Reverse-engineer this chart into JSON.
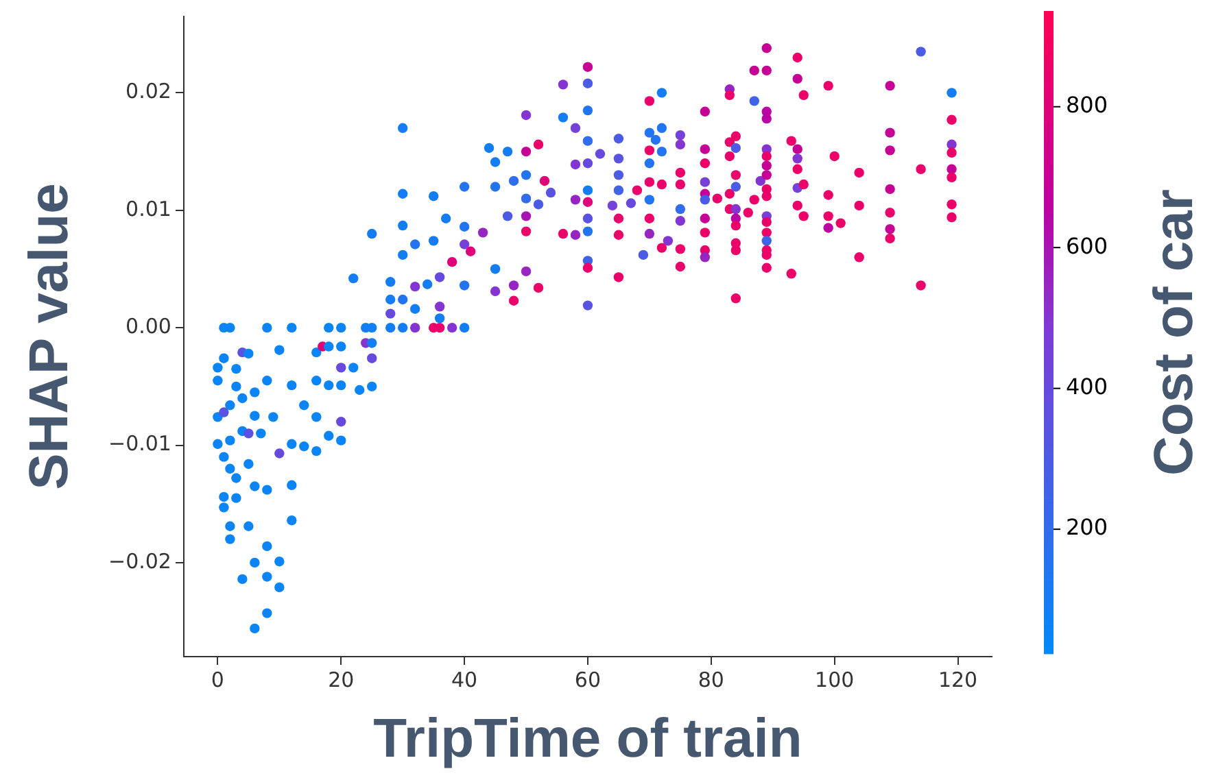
{
  "chart_data": {
    "type": "scatter",
    "xlabel": "TripTime of train",
    "ylabel": "SHAP value",
    "clabel": "Cost of car",
    "marker": "circle",
    "xlim": [
      -5.5,
      125.5
    ],
    "ylim": [
      -0.028,
      0.0265
    ],
    "xticks": [
      0,
      20,
      40,
      60,
      80,
      100,
      120
    ],
    "yticks": [
      {
        "value": -0.02,
        "label": "−0.02"
      },
      {
        "value": -0.01,
        "label": "−0.01"
      },
      {
        "value": 0,
        "label": "0.00"
      },
      {
        "value": 0.01,
        "label": "0.01"
      },
      {
        "value": 0.02,
        "label": "0.02"
      }
    ],
    "clim": [
      23,
      936
    ],
    "cticks": [
      200,
      400,
      600,
      800
    ],
    "x": [
      1,
      2,
      8,
      12,
      18,
      20,
      24,
      25,
      28,
      30,
      32,
      35,
      36,
      38,
      40,
      6,
      8,
      4,
      8,
      10,
      10,
      6,
      8,
      1,
      1,
      12,
      12,
      16,
      20,
      14,
      18,
      20,
      0,
      1,
      4,
      10,
      16,
      17,
      18,
      20,
      24,
      25,
      23,
      25,
      20,
      25,
      0,
      0,
      2,
      4,
      5,
      3,
      2,
      2,
      5,
      8,
      8,
      9,
      12,
      12,
      14,
      16,
      16,
      18,
      20,
      22,
      5,
      0,
      2,
      1,
      5,
      10,
      3,
      4,
      6,
      1,
      3,
      6,
      7,
      6,
      3,
      2,
      30,
      30,
      30,
      25,
      22,
      28,
      35,
      37,
      40,
      38,
      36,
      32,
      28,
      30,
      30,
      32,
      32,
      34,
      35,
      36,
      36,
      40,
      40,
      40,
      41,
      28,
      44,
      45,
      47,
      50,
      52,
      50,
      56,
      56,
      45,
      45,
      48,
      52,
      48,
      50,
      43,
      50,
      56,
      45,
      48,
      50,
      50,
      52,
      54,
      47,
      50,
      53,
      60,
      60,
      60,
      60,
      60,
      60,
      60,
      60,
      60,
      60,
      60,
      60,
      58,
      58,
      58,
      58,
      62,
      65,
      65,
      65,
      65,
      65,
      65,
      65,
      68,
      64,
      67,
      69,
      70,
      70,
      70,
      70,
      70,
      70,
      70,
      70,
      72,
      72,
      71,
      72,
      72,
      72,
      73,
      75,
      75,
      75,
      75,
      75,
      75,
      75,
      75,
      79,
      79,
      79,
      79,
      79,
      79,
      79,
      79,
      79,
      79,
      81,
      83,
      83,
      83,
      83,
      83,
      83,
      84,
      84,
      84,
      84,
      84,
      84,
      84,
      84,
      84,
      84,
      86,
      87,
      87,
      87,
      88,
      89,
      89,
      89,
      89,
      89,
      89,
      89,
      89,
      89,
      89,
      89,
      89,
      89,
      89,
      89,
      89,
      89,
      93,
      93,
      94,
      94,
      95,
      94,
      94,
      94,
      94,
      95,
      94,
      95,
      99,
      99,
      99,
      99,
      100,
      101,
      104,
      104,
      104,
      109,
      109,
      109,
      109,
      109,
      109,
      109,
      114,
      114,
      114,
      119,
      119,
      119,
      119,
      119,
      119,
      119,
      119
    ],
    "values": [
      0,
      0,
      0,
      0,
      0,
      0,
      0,
      0,
      0,
      0,
      0,
      0,
      0,
      0,
      0,
      -0.0256,
      -0.0243,
      -0.0214,
      -0.0212,
      -0.0221,
      -0.0199,
      -0.02,
      -0.0186,
      -0.0153,
      -0.0144,
      -0.0164,
      -0.0134,
      -0.0105,
      -0.0096,
      -0.0101,
      -0.0092,
      -0.008,
      -0.0034,
      -0.0026,
      -0.0021,
      -0.0019,
      -0.0021,
      -0.0016,
      -0.0016,
      -0.0016,
      -0.0013,
      -0.0013,
      -0.0053,
      -0.005,
      -0.0034,
      -0.0026,
      -0.0076,
      -0.0099,
      -0.0066,
      -0.0088,
      -0.0116,
      -0.0128,
      -0.0169,
      -0.018,
      -0.0169,
      -0.0045,
      -0.0138,
      -0.0076,
      -0.0049,
      -0.0099,
      -0.0066,
      -0.0045,
      -0.0076,
      -0.0049,
      -0.0049,
      -0.0034,
      -0.0022,
      -0.0045,
      -0.0096,
      -0.0072,
      -0.009,
      -0.0107,
      -0.005,
      -0.006,
      -0.0055,
      -0.011,
      -0.0145,
      -0.0135,
      -0.009,
      -0.0075,
      -0.0035,
      -0.012,
      0.017,
      0.0114,
      0.0087,
      0.008,
      0.0042,
      0.0039,
      0.0112,
      0.0093,
      0.012,
      0.0056,
      0.0018,
      0.0035,
      0.0024,
      0.0062,
      0.0024,
      0.0071,
      0.0016,
      0.0037,
      0.0074,
      0.0043,
      0.0008,
      0.0086,
      0.0071,
      0.0036,
      0.0065,
      0.0012,
      0.0153,
      0.0141,
      0.015,
      0.0181,
      0.0156,
      0.015,
      0.0207,
      0.0179,
      0.005,
      0.0031,
      0.0023,
      0.0034,
      0.0036,
      0.0048,
      0.0081,
      0.0082,
      0.008,
      0.012,
      0.0125,
      0.013,
      0.011,
      0.0105,
      0.0115,
      0.0095,
      0.0095,
      0.0125,
      0.0222,
      0.0208,
      0.0185,
      0.0159,
      0.0117,
      0.0093,
      0.0082,
      0.0057,
      0.0051,
      0.0019,
      0.014,
      0.0107,
      0.017,
      0.0139,
      0.0109,
      0.0079,
      0.0148,
      0.0161,
      0.0144,
      0.013,
      0.0117,
      0.0093,
      0.0079,
      0.0043,
      0.0117,
      0.0104,
      0.0106,
      0.0062,
      0.0193,
      0.0166,
      0.014,
      0.0124,
      0.0109,
      0.0093,
      0.008,
      0.0151,
      0.02,
      0.017,
      0.016,
      0.015,
      0.0122,
      0.0068,
      0.0074,
      0.0164,
      0.0156,
      0.0132,
      0.0122,
      0.0101,
      0.0091,
      0.0067,
      0.0052,
      0.0184,
      0.0152,
      0.014,
      0.0124,
      0.0114,
      0.0109,
      0.0093,
      0.0081,
      0.0066,
      0.006,
      0.011,
      0.0146,
      0.0203,
      0.0198,
      0.0158,
      0.0114,
      0.0101,
      0.0163,
      0.0153,
      0.013,
      0.012,
      0.0101,
      0.0093,
      0.0087,
      0.0072,
      0.0066,
      0.0025,
      0.0098,
      0.0219,
      0.0193,
      0.0109,
      0.0125,
      0.0238,
      0.0219,
      0.0184,
      0.0178,
      0.0152,
      0.0146,
      0.0138,
      0.013,
      0.0118,
      0.0112,
      0.0095,
      0.009,
      0.0081,
      0.0074,
      0.0066,
      0.0062,
      0.0051,
      0.0159,
      0.0046,
      0.023,
      0.0212,
      0.0198,
      0.0152,
      0.0144,
      0.0135,
      0.0119,
      0.0122,
      0.0104,
      0.0095,
      0.0206,
      0.0113,
      0.0095,
      0.0085,
      0.0146,
      0.0089,
      0.0132,
      0.0104,
      0.006,
      0.0206,
      0.0166,
      0.0151,
      0.0118,
      0.0098,
      0.0084,
      0.0076,
      0.0235,
      0.0135,
      0.0036,
      0.02,
      0.0177,
      0.0156,
      0.0149,
      0.0135,
      0.0128,
      0.0105,
      0.0094
    ],
    "cvalues": [
      60,
      60,
      60,
      60,
      60,
      60,
      80,
      80,
      100,
      100,
      500,
      850,
      850,
      500,
      100,
      60,
      60,
      60,
      60,
      60,
      60,
      60,
      60,
      60,
      60,
      60,
      60,
      60,
      60,
      60,
      60,
      400,
      60,
      60,
      350,
      60,
      60,
      800,
      60,
      60,
      500,
      100,
      60,
      60,
      400,
      400,
      60,
      60,
      60,
      60,
      60,
      60,
      60,
      60,
      60,
      60,
      60,
      60,
      60,
      60,
      60,
      60,
      60,
      60,
      60,
      60,
      60,
      60,
      60,
      350,
      350,
      400,
      60,
      60,
      60,
      60,
      60,
      60,
      60,
      60,
      60,
      60,
      100,
      100,
      100,
      100,
      100,
      100,
      100,
      100,
      150,
      800,
      500,
      500,
      100,
      100,
      150,
      150,
      100,
      100,
      100,
      400,
      100,
      150,
      450,
      150,
      800,
      400,
      100,
      100,
      100,
      500,
      850,
      700,
      500,
      100,
      100,
      500,
      850,
      850,
      550,
      550,
      550,
      850,
      850,
      150,
      200,
      150,
      200,
      300,
      350,
      300,
      600,
      800,
      700,
      300,
      150,
      200,
      100,
      350,
      150,
      250,
      850,
      350,
      400,
      800,
      450,
      500,
      550,
      550,
      400,
      300,
      350,
      300,
      250,
      850,
      850,
      850,
      850,
      450,
      400,
      300,
      850,
      150,
      150,
      850,
      150,
      850,
      550,
      850,
      100,
      150,
      150,
      150,
      850,
      850,
      500,
      450,
      500,
      850,
      850,
      200,
      500,
      850,
      850,
      700,
      700,
      850,
      450,
      700,
      300,
      700,
      850,
      850,
      550,
      850,
      850,
      550,
      850,
      850,
      850,
      850,
      850,
      300,
      850,
      300,
      500,
      650,
      850,
      850,
      850,
      850,
      850,
      700,
      250,
      850,
      500,
      700,
      700,
      650,
      650,
      500,
      850,
      700,
      700,
      850,
      850,
      450,
      850,
      850,
      250,
      850,
      850,
      850,
      850,
      850,
      850,
      700,
      850,
      700,
      500,
      850,
      450,
      850,
      850,
      850,
      850,
      850,
      850,
      650,
      850,
      850,
      850,
      850,
      850,
      700,
      700,
      700,
      700,
      850,
      700,
      850,
      300,
      850,
      850,
      100,
      850,
      500,
      850,
      700,
      850,
      850,
      850
    ]
  }
}
